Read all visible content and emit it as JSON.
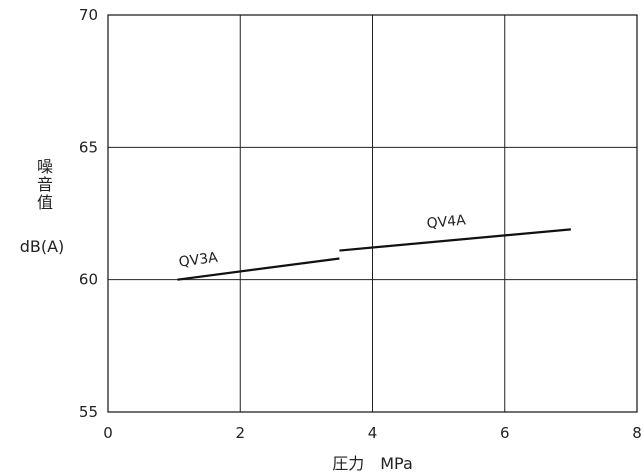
{
  "chart_data": {
    "type": "line",
    "xlabel": "圧力　MPa",
    "ylabel_lines": [
      "噪",
      "音",
      "值"
    ],
    "yunit": "dB(A)",
    "xlim": [
      0,
      8
    ],
    "ylim": [
      55,
      70
    ],
    "xticks": [
      0,
      2,
      4,
      6,
      8
    ],
    "yticks": [
      55,
      60,
      65,
      70
    ],
    "grid": true,
    "series": [
      {
        "name": "QV3A",
        "x": [
          1.05,
          3.5
        ],
        "y": [
          60.0,
          60.8
        ]
      },
      {
        "name": "QV4A",
        "x": [
          3.5,
          7.0
        ],
        "y": [
          61.1,
          61.9
        ]
      }
    ],
    "colors": {
      "line": "#111111",
      "grid": "#222222",
      "frame": "#111111"
    }
  }
}
